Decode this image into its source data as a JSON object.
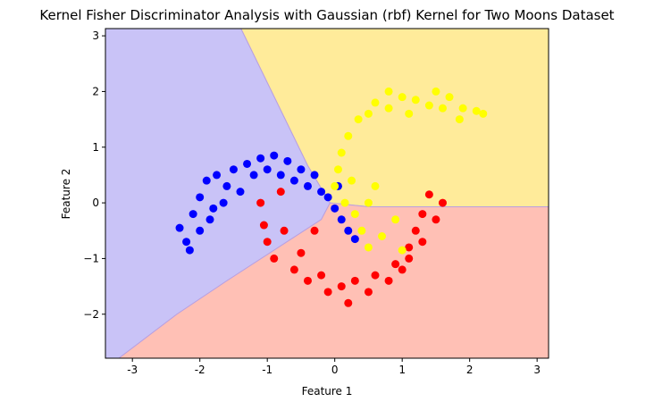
{
  "chart_data": {
    "type": "scatter",
    "title": "Kernel Fisher Discriminator Analysis with Gaussian (rbf) Kernel for Two Moons Dataset",
    "x_label": "Feature 1",
    "y_label": "Feature 2",
    "xlim": [
      -3.4,
      3.17
    ],
    "ylim": [
      -2.79,
      3.13
    ],
    "xticks": [
      -3,
      -2,
      -1,
      0,
      1,
      2,
      3
    ],
    "yticks": [
      {
        "value": -2,
        "label": "−2"
      },
      {
        "value": -1,
        "label": "−1"
      },
      0,
      1,
      2,
      3
    ],
    "regions": [
      {
        "color": "#c9c3f7",
        "x": [
          -3.4,
          -1.39,
          -0.4,
          -0.07,
          -0.2,
          -1.6,
          -2.34,
          -3.2,
          -3.4
        ],
        "y": [
          3.13,
          3.13,
          0.67,
          0,
          -0.3,
          -1.4,
          -2.0,
          -2.79,
          -2.79
        ]
      },
      {
        "color": "#ffeb9a",
        "x": [
          -1.39,
          3.17,
          3.17,
          0.5,
          -0.07,
          -0.4
        ],
        "y": [
          3.13,
          3.13,
          -0.07,
          -0.07,
          0,
          0.67
        ]
      },
      {
        "color": "#ffc0b5",
        "x": [
          -3.2,
          -2.34,
          -1.6,
          -0.2,
          -0.07,
          0.5,
          3.17,
          3.17
        ],
        "y": [
          -2.79,
          -2.0,
          -1.4,
          -0.3,
          0,
          -0.07,
          -0.07,
          -2.79
        ]
      }
    ],
    "series": [
      {
        "color": "#0000ff",
        "x": [
          -2.3,
          -2.2,
          -2.15,
          -2.1,
          -2.0,
          -2.0,
          -1.9,
          -1.8,
          -1.75,
          -1.6,
          -1.5,
          -1.4,
          -1.3,
          -1.2,
          -1.1,
          -1.0,
          -0.9,
          -0.8,
          -0.7,
          -0.6,
          -0.5,
          -0.4,
          -0.3,
          -0.2,
          -0.1,
          0.0,
          0.1,
          0.2,
          0.3,
          0.05,
          -1.85,
          -1.65
        ],
        "values": [
          -0.45,
          -0.7,
          -0.85,
          -0.2,
          -0.5,
          0.1,
          0.4,
          -0.1,
          0.5,
          0.3,
          0.6,
          0.2,
          0.7,
          0.5,
          0.8,
          0.6,
          0.85,
          0.5,
          0.75,
          0.4,
          0.6,
          0.3,
          0.5,
          0.2,
          0.1,
          -0.1,
          -0.3,
          -0.5,
          -0.65,
          0.3,
          -0.3,
          0.0
        ]
      },
      {
        "color": "#ff0000",
        "x": [
          -1.1,
          -1.05,
          -1.0,
          -0.9,
          -0.8,
          -0.75,
          -0.6,
          -0.5,
          -0.4,
          -0.2,
          -0.1,
          0.1,
          0.2,
          0.3,
          0.5,
          0.6,
          0.8,
          0.9,
          1.0,
          1.1,
          1.2,
          1.3,
          1.4,
          1.5,
          1.6,
          1.1,
          1.3,
          -0.3
        ],
        "values": [
          0.0,
          -0.4,
          -0.7,
          -1.0,
          0.2,
          -0.5,
          -1.2,
          -0.9,
          -1.4,
          -1.3,
          -1.6,
          -1.5,
          -1.8,
          -1.4,
          -1.6,
          -1.3,
          -1.4,
          -1.1,
          -1.2,
          -0.8,
          -0.5,
          -0.2,
          0.15,
          -0.3,
          0.0,
          -1.0,
          -0.7,
          -0.5
        ]
      },
      {
        "color": "#ffff00",
        "x": [
          0.0,
          0.05,
          0.1,
          0.2,
          0.15,
          0.3,
          0.4,
          0.5,
          0.7,
          1.0,
          0.35,
          0.5,
          0.6,
          0.8,
          0.8,
          1.0,
          1.1,
          1.2,
          1.4,
          1.5,
          1.6,
          1.7,
          1.85,
          1.9,
          2.1,
          2.2,
          0.6,
          0.5,
          0.25,
          0.9
        ],
        "values": [
          0.3,
          0.6,
          0.9,
          1.2,
          0.0,
          -0.2,
          -0.5,
          -0.8,
          -0.6,
          -0.85,
          1.5,
          1.6,
          1.8,
          1.7,
          2.0,
          1.9,
          1.6,
          1.85,
          1.75,
          2.0,
          1.7,
          1.9,
          1.5,
          1.7,
          1.65,
          1.6,
          0.3,
          0.0,
          0.4,
          -0.3
        ]
      }
    ]
  }
}
